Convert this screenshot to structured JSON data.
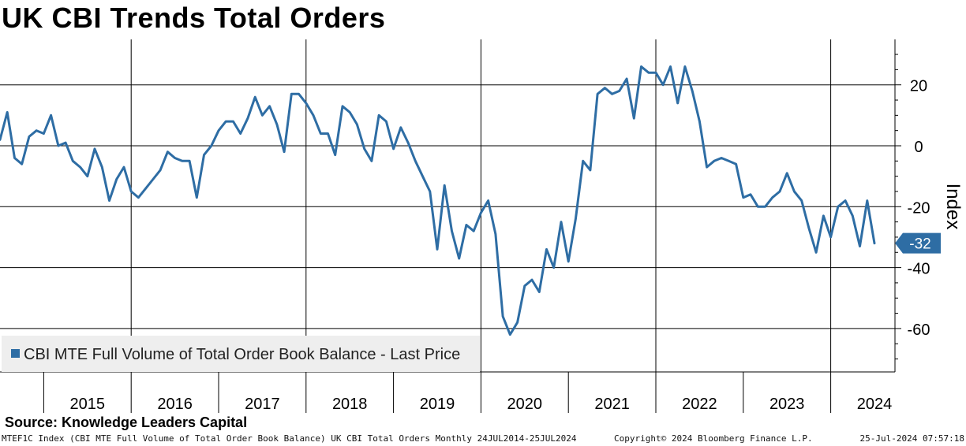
{
  "title": "UK CBI Trends Total Orders",
  "source": "Source: Knowledge Leaders Capital",
  "footer": {
    "left": "MTEF1C Index (CBI MTE Full Volume of Total Order Book Balance) UK CBI Total Orders  Monthly 24JUL2014-25JUL2024",
    "center": "Copyright© 2024 Bloomberg Finance L.P.",
    "right": "25-Jul-2024 07:57:18"
  },
  "colors": {
    "series": "#2e6da4",
    "grid": "#000000",
    "label_bg": "#2e6da4",
    "legend_bg": "#eeeeee"
  },
  "chart_data": {
    "type": "line",
    "title": "UK CBI Trends Total Orders",
    "ylabel": "Index",
    "xlabel": "",
    "x_range": [
      "2014-07",
      "2024-07"
    ],
    "ylim": [
      -75,
      35
    ],
    "yticks": [
      -60,
      -40,
      -20,
      0,
      20
    ],
    "year_labels": [
      "2015",
      "2016",
      "2017",
      "2018",
      "2019",
      "2020",
      "2021",
      "2022",
      "2023",
      "2024"
    ],
    "grid": true,
    "legend_position": "bottom-left",
    "last_value_label": "-32",
    "series": [
      {
        "name": "CBI MTE Full Volume of Total Order Book Balance - Last Price",
        "x": [
          "2014-07",
          "2014-08",
          "2014-09",
          "2014-10",
          "2014-11",
          "2014-12",
          "2015-01",
          "2015-02",
          "2015-03",
          "2015-04",
          "2015-05",
          "2015-06",
          "2015-07",
          "2015-08",
          "2015-09",
          "2015-10",
          "2015-11",
          "2015-12",
          "2016-01",
          "2016-02",
          "2016-03",
          "2016-04",
          "2016-05",
          "2016-06",
          "2016-07",
          "2016-08",
          "2016-09",
          "2016-10",
          "2016-11",
          "2016-12",
          "2017-01",
          "2017-02",
          "2017-03",
          "2017-04",
          "2017-05",
          "2017-06",
          "2017-07",
          "2017-08",
          "2017-09",
          "2017-10",
          "2017-11",
          "2017-12",
          "2018-01",
          "2018-02",
          "2018-03",
          "2018-04",
          "2018-05",
          "2018-06",
          "2018-07",
          "2018-08",
          "2018-09",
          "2018-10",
          "2018-11",
          "2018-12",
          "2019-01",
          "2019-02",
          "2019-03",
          "2019-04",
          "2019-05",
          "2019-06",
          "2019-07",
          "2019-08",
          "2019-09",
          "2019-10",
          "2019-11",
          "2019-12",
          "2020-01",
          "2020-02",
          "2020-03",
          "2020-04",
          "2020-05",
          "2020-06",
          "2020-07",
          "2020-08",
          "2020-09",
          "2020-10",
          "2020-11",
          "2020-12",
          "2021-01",
          "2021-02",
          "2021-03",
          "2021-04",
          "2021-05",
          "2021-06",
          "2021-07",
          "2021-08",
          "2021-09",
          "2021-10",
          "2021-11",
          "2021-12",
          "2022-01",
          "2022-02",
          "2022-03",
          "2022-04",
          "2022-05",
          "2022-06",
          "2022-07",
          "2022-08",
          "2022-09",
          "2022-10",
          "2022-11",
          "2022-12",
          "2023-01",
          "2023-02",
          "2023-03",
          "2023-04",
          "2023-05",
          "2023-06",
          "2023-07",
          "2023-08",
          "2023-09",
          "2023-10",
          "2023-11",
          "2023-12",
          "2024-01",
          "2024-02",
          "2024-03",
          "2024-04",
          "2024-05",
          "2024-06",
          "2024-07"
        ],
        "values": [
          2,
          11,
          -4,
          -6,
          3,
          5,
          4,
          10,
          0,
          1,
          -5,
          -7,
          -10,
          -1,
          -7,
          -18,
          -11,
          -7,
          -15,
          -17,
          -14,
          -11,
          -8,
          -2,
          -4,
          -5,
          -5,
          -17,
          -3,
          0,
          5,
          8,
          8,
          4,
          9,
          16,
          10,
          13,
          7,
          -2,
          17,
          17,
          14,
          10,
          4,
          4,
          -3,
          13,
          11,
          7,
          -1,
          -5,
          10,
          8,
          -1,
          6,
          1,
          -5,
          -10,
          -15,
          -34,
          -13,
          -28,
          -37,
          -26,
          -28,
          -22,
          -18,
          -29,
          -56,
          -62,
          -58,
          -46,
          -44,
          -48,
          -34,
          -40,
          -25,
          -38,
          -24,
          -5,
          -8,
          17,
          19,
          17,
          18,
          22,
          9,
          26,
          24,
          24,
          20,
          26,
          14,
          26,
          18,
          8,
          -7,
          -5,
          -4,
          -5,
          -6,
          -17,
          -16,
          -20,
          -20,
          -17,
          -15,
          -9,
          -15,
          -18,
          -27,
          -35,
          -23,
          -30,
          -20,
          -18,
          -23,
          -33,
          -18,
          -32
        ]
      }
    ]
  }
}
